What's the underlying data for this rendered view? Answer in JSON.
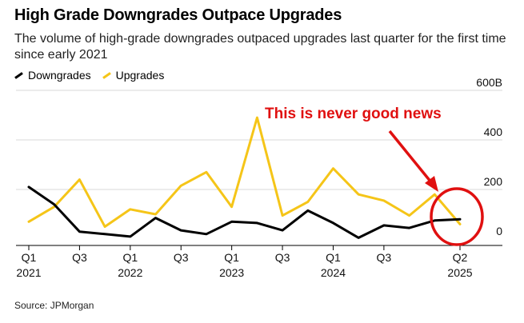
{
  "title": "High Grade Downgrades Outpace Upgrades",
  "subtitle": "The volume of high-grade downgrades outpaced upgrades last quarter for the first time since early 2021",
  "source": "Source: JPMorgan",
  "annotation": "This is never good news",
  "colors": {
    "downgrades": "#000000",
    "upgrades": "#f5c518",
    "annotation": "#e01010",
    "grid": "#d9d9d9"
  },
  "chart_data": {
    "type": "line",
    "title": "High Grade Downgrades Outpace Upgrades",
    "xlabel": "",
    "ylabel": "",
    "ylim": [
      0,
      600
    ],
    "y_ticks": [
      {
        "value": 0,
        "label": "0"
      },
      {
        "value": 200,
        "label": "200"
      },
      {
        "value": 400,
        "label": "400"
      },
      {
        "value": 600,
        "label": "600B"
      }
    ],
    "x": [
      "Q1 2021",
      "Q2 2021",
      "Q3 2021",
      "Q4 2021",
      "Q1 2022",
      "Q2 2022",
      "Q3 2022",
      "Q4 2022",
      "Q1 2023",
      "Q2 2023",
      "Q3 2023",
      "Q4 2023",
      "Q1 2024",
      "Q2 2024",
      "Q3 2024",
      "Q4 2024",
      "Q1 2025",
      "Q2 2025"
    ],
    "x_tick_labels": [
      {
        "index": 0,
        "line1": "Q1",
        "line2": "2021"
      },
      {
        "index": 2,
        "line1": "Q3",
        "line2": ""
      },
      {
        "index": 4,
        "line1": "Q1",
        "line2": "2022"
      },
      {
        "index": 6,
        "line1": "Q3",
        "line2": ""
      },
      {
        "index": 8,
        "line1": "Q1",
        "line2": "2023"
      },
      {
        "index": 10,
        "line1": "Q3",
        "line2": ""
      },
      {
        "index": 12,
        "line1": "Q1",
        "line2": "2024"
      },
      {
        "index": 14,
        "line1": "Q3",
        "line2": ""
      },
      {
        "index": 17,
        "line1": "Q2",
        "line2": "2025"
      }
    ],
    "series": [
      {
        "name": "Downgrades",
        "color": "#000000",
        "values": [
          210,
          140,
          30,
          20,
          10,
          85,
          35,
          20,
          70,
          65,
          35,
          115,
          65,
          5,
          55,
          45,
          75,
          80
        ]
      },
      {
        "name": "Upgrades",
        "color": "#f5c518",
        "values": [
          70,
          130,
          240,
          50,
          120,
          100,
          215,
          270,
          130,
          490,
          95,
          150,
          285,
          180,
          155,
          95,
          180,
          60
        ]
      }
    ],
    "legend_position": "top-left",
    "grid": true
  }
}
